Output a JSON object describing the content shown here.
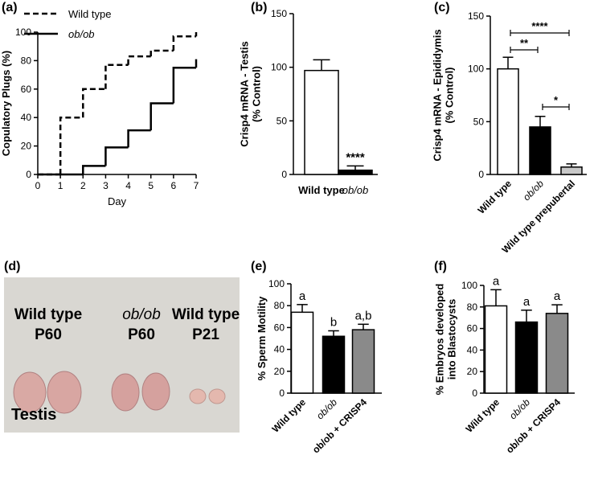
{
  "chart_data": [
    {
      "type": "step",
      "panel": "(a)",
      "xlabel": "Day",
      "ylabel": [
        "Copulatory Plugs (%)"
      ],
      "x": [
        0,
        1,
        2,
        3,
        4,
        5,
        6,
        7
      ],
      "xlim": [
        0,
        7
      ],
      "xticks": [
        0,
        1,
        2,
        3,
        4,
        5,
        6,
        7
      ],
      "ylim": [
        0,
        100
      ],
      "yticks": [
        0,
        20,
        40,
        60,
        80,
        100
      ],
      "series": [
        {
          "name": "Wild type",
          "color": "#000000",
          "dashed": true,
          "values": [
            0,
            40,
            60,
            77,
            83,
            87,
            97,
            100
          ]
        },
        {
          "name": "ob/ob",
          "color": "#000000",
          "dashed": false,
          "values": [
            0,
            0,
            6,
            19,
            31,
            50,
            75,
            81
          ]
        }
      ]
    },
    {
      "type": "bar",
      "panel": "(b)",
      "ylabel": [
        "Crisp4 mRNA - Testis",
        "(% Control)"
      ],
      "categories": [
        "Wild type",
        "ob/ob"
      ],
      "values": [
        97,
        4
      ],
      "errors": [
        10,
        4
      ],
      "colors": [
        "#ffffff",
        "#000000"
      ],
      "annotations": [
        null,
        "****"
      ],
      "ylim": [
        0,
        150
      ],
      "yticks": [
        0,
        50,
        100,
        150
      ]
    },
    {
      "type": "bar",
      "panel": "(c)",
      "ylabel": [
        "Crisp4 mRNA - Epididymis",
        "(% Control)"
      ],
      "categories": [
        "Wild type",
        "ob/ob",
        "Wild type prepubertal"
      ],
      "values": [
        100,
        45,
        7
      ],
      "errors": [
        11,
        10,
        3
      ],
      "colors": [
        "#ffffff",
        "#000000",
        "#c8c8c8"
      ],
      "significance": [
        {
          "between": [
            0,
            1
          ],
          "label": "**"
        },
        {
          "between": [
            0,
            2
          ],
          "label": "****"
        },
        {
          "between": [
            1,
            2
          ],
          "label": "*"
        }
      ],
      "ylim": [
        0,
        150
      ],
      "yticks": [
        0,
        50,
        100,
        150
      ]
    },
    {
      "type": "bar",
      "panel": "(e)",
      "ylabel": [
        "% Sperm Motility"
      ],
      "categories": [
        "Wild type",
        "ob/ob",
        "ob/ob + CRISP4"
      ],
      "values": [
        74,
        52,
        58
      ],
      "errors": [
        7,
        5,
        5
      ],
      "colors": [
        "#ffffff",
        "#000000",
        "#8a8a8a"
      ],
      "annotations": [
        "a",
        "b",
        "a,b"
      ],
      "ylim": [
        0,
        100
      ],
      "yticks": [
        0,
        20,
        40,
        60,
        80,
        100
      ]
    },
    {
      "type": "bar",
      "panel": "(f)",
      "ylabel": [
        "% Embryos developed",
        "into Blastocysts"
      ],
      "categories": [
        "Wild type",
        "ob/ob",
        "ob/ob + CRISP4"
      ],
      "values": [
        81,
        66,
        74
      ],
      "errors": [
        15,
        11,
        8
      ],
      "colors": [
        "#ffffff",
        "#000000",
        "#8a8a8a"
      ],
      "annotations": [
        "a",
        "a",
        "a"
      ],
      "ylim": [
        0,
        100
      ],
      "yticks": [
        0,
        20,
        40,
        60,
        80,
        100
      ]
    }
  ],
  "photo": {
    "panel": "(d)",
    "labels": [
      [
        "Wild type",
        "P60"
      ],
      [
        "ob/ob",
        "P60"
      ],
      [
        "Wild type",
        "P21"
      ]
    ],
    "caption": "Testis"
  }
}
